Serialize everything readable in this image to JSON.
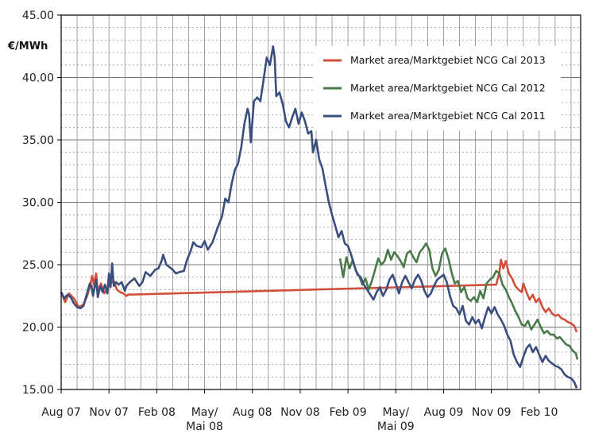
{
  "chart_data": {
    "type": "line",
    "unit_label": "€/MWh",
    "y_ticks": [
      "15.00",
      "20.00",
      "25.00",
      "30.00",
      "35.00",
      "40.00",
      "45.00"
    ],
    "ylim": [
      15,
      45
    ],
    "x_ticks": [
      {
        "label": "Aug 07",
        "label2": "",
        "x": 0
      },
      {
        "label": "Nov 07",
        "label2": "",
        "x": 3
      },
      {
        "label": "Feb 08",
        "label2": "",
        "x": 6
      },
      {
        "label": "May/",
        "label2": "Mai 08",
        "x": 9
      },
      {
        "label": "Aug 08",
        "label2": "",
        "x": 12
      },
      {
        "label": "Nov 08",
        "label2": "",
        "x": 15
      },
      {
        "label": "Feb 09",
        "label2": "",
        "x": 18
      },
      {
        "label": "May/",
        "label2": "Mai 09",
        "x": 21
      },
      {
        "label": "Aug 09",
        "label2": "",
        "x": 24
      },
      {
        "label": "Nov 09",
        "label2": "",
        "x": 27
      },
      {
        "label": "Feb 10",
        "label2": "",
        "x": 30
      }
    ],
    "xlim": [
      0,
      32.6
    ],
    "grid": true,
    "legend_position": "top-right",
    "series": [
      {
        "name": "Market area/Marktgebiet NCG Cal 2013",
        "color": "#d1503b",
        "points": [
          [
            0,
            22.8
          ],
          [
            0.25,
            22.0
          ],
          [
            0.5,
            22.7
          ],
          [
            0.8,
            22.3
          ],
          [
            1.1,
            21.6
          ],
          [
            1.4,
            21.8
          ],
          [
            1.6,
            22.4
          ],
          [
            1.8,
            23.2
          ],
          [
            1.95,
            24.1
          ],
          [
            2.05,
            23.4
          ],
          [
            2.2,
            24.3
          ],
          [
            2.3,
            22.8
          ],
          [
            2.5,
            23.5
          ],
          [
            2.7,
            22.7
          ],
          [
            2.9,
            23.1
          ],
          [
            3.1,
            23.5
          ],
          [
            3.3,
            23.7
          ],
          [
            3.5,
            23.0
          ],
          [
            3.7,
            22.8
          ],
          [
            3.9,
            22.7
          ],
          [
            4.1,
            22.5
          ],
          [
            4.2,
            22.6
          ],
          [
            27.3,
            23.4
          ],
          [
            27.5,
            24.4
          ],
          [
            27.6,
            25.4
          ],
          [
            27.75,
            24.7
          ],
          [
            27.9,
            25.3
          ],
          [
            28.1,
            24.3
          ],
          [
            28.3,
            23.9
          ],
          [
            28.5,
            23.3
          ],
          [
            28.7,
            23.0
          ],
          [
            28.9,
            22.8
          ],
          [
            29.0,
            23.5
          ],
          [
            29.2,
            22.8
          ],
          [
            29.4,
            22.2
          ],
          [
            29.6,
            22.6
          ],
          [
            29.8,
            22.0
          ],
          [
            30.0,
            22.3
          ],
          [
            30.2,
            21.6
          ],
          [
            30.4,
            21.2
          ],
          [
            30.6,
            21.5
          ],
          [
            30.8,
            21.1
          ],
          [
            31.0,
            20.9
          ],
          [
            31.2,
            21.0
          ],
          [
            31.4,
            20.7
          ],
          [
            31.6,
            20.6
          ],
          [
            31.8,
            20.4
          ],
          [
            32.0,
            20.3
          ],
          [
            32.2,
            20.1
          ],
          [
            32.35,
            19.6
          ]
        ]
      },
      {
        "name": "Market area/Marktgebiet NCG Cal 2012",
        "color": "#4a7a4a",
        "points": [
          [
            17.5,
            25.5
          ],
          [
            17.7,
            24.0
          ],
          [
            17.9,
            25.6
          ],
          [
            18.1,
            24.7
          ],
          [
            18.3,
            25.4
          ],
          [
            18.5,
            24.5
          ],
          [
            18.7,
            24.1
          ],
          [
            18.9,
            23.4
          ],
          [
            19.1,
            23.9
          ],
          [
            19.3,
            23.0
          ],
          [
            19.5,
            23.7
          ],
          [
            19.7,
            24.6
          ],
          [
            19.9,
            25.5
          ],
          [
            20.1,
            25.0
          ],
          [
            20.3,
            25.3
          ],
          [
            20.5,
            26.2
          ],
          [
            20.7,
            25.4
          ],
          [
            20.9,
            26.0
          ],
          [
            21.1,
            25.7
          ],
          [
            21.3,
            25.3
          ],
          [
            21.5,
            24.8
          ],
          [
            21.7,
            25.9
          ],
          [
            21.9,
            26.1
          ],
          [
            22.1,
            25.6
          ],
          [
            22.3,
            25.2
          ],
          [
            22.5,
            26.0
          ],
          [
            22.7,
            26.3
          ],
          [
            22.9,
            26.7
          ],
          [
            23.1,
            26.2
          ],
          [
            23.3,
            24.7
          ],
          [
            23.5,
            24.1
          ],
          [
            23.7,
            24.6
          ],
          [
            23.9,
            25.9
          ],
          [
            24.1,
            26.3
          ],
          [
            24.3,
            25.5
          ],
          [
            24.5,
            24.4
          ],
          [
            24.7,
            23.5
          ],
          [
            24.9,
            23.7
          ],
          [
            25.1,
            22.8
          ],
          [
            25.3,
            23.2
          ],
          [
            25.5,
            22.3
          ],
          [
            25.7,
            22.1
          ],
          [
            25.9,
            22.4
          ],
          [
            26.1,
            22.0
          ],
          [
            26.3,
            22.9
          ],
          [
            26.5,
            22.3
          ],
          [
            26.7,
            23.5
          ],
          [
            26.9,
            23.8
          ],
          [
            27.1,
            24.0
          ],
          [
            27.3,
            24.5
          ],
          [
            27.5,
            24.3
          ],
          [
            27.7,
            23.4
          ],
          [
            27.9,
            23.0
          ],
          [
            28.1,
            22.4
          ],
          [
            28.3,
            21.9
          ],
          [
            28.5,
            21.3
          ],
          [
            28.7,
            20.8
          ],
          [
            28.9,
            20.2
          ],
          [
            29.1,
            20.1
          ],
          [
            29.3,
            20.5
          ],
          [
            29.5,
            19.8
          ],
          [
            29.7,
            20.2
          ],
          [
            29.9,
            20.6
          ],
          [
            30.1,
            20.0
          ],
          [
            30.3,
            19.5
          ],
          [
            30.5,
            19.7
          ],
          [
            30.7,
            19.4
          ],
          [
            30.9,
            19.4
          ],
          [
            31.1,
            19.1
          ],
          [
            31.3,
            19.2
          ],
          [
            31.5,
            18.9
          ],
          [
            31.7,
            18.6
          ],
          [
            31.9,
            18.5
          ],
          [
            32.1,
            18.1
          ],
          [
            32.3,
            17.9
          ],
          [
            32.4,
            17.4
          ]
        ]
      },
      {
        "name": "Market area/Marktgebiet NCG Cal 2011",
        "color": "#3a4f7e",
        "points": [
          [
            0,
            22.8
          ],
          [
            0.2,
            22.3
          ],
          [
            0.4,
            22.6
          ],
          [
            0.6,
            22.4
          ],
          [
            0.8,
            21.9
          ],
          [
            1.0,
            21.6
          ],
          [
            1.2,
            21.5
          ],
          [
            1.4,
            21.7
          ],
          [
            1.6,
            22.6
          ],
          [
            1.8,
            23.5
          ],
          [
            1.9,
            23.3
          ],
          [
            2.0,
            22.5
          ],
          [
            2.2,
            23.8
          ],
          [
            2.3,
            22.4
          ],
          [
            2.45,
            23.3
          ],
          [
            2.6,
            22.8
          ],
          [
            2.75,
            23.4
          ],
          [
            2.9,
            22.7
          ],
          [
            3.0,
            24.3
          ],
          [
            3.1,
            23.2
          ],
          [
            3.2,
            25.1
          ],
          [
            3.3,
            23.3
          ],
          [
            3.45,
            23.6
          ],
          [
            3.6,
            23.4
          ],
          [
            3.8,
            23.6
          ],
          [
            4.0,
            22.9
          ],
          [
            4.1,
            23.3
          ],
          [
            4.3,
            23.6
          ],
          [
            4.6,
            23.9
          ],
          [
            4.9,
            23.3
          ],
          [
            5.1,
            23.6
          ],
          [
            5.3,
            24.4
          ],
          [
            5.6,
            24.1
          ],
          [
            5.9,
            24.6
          ],
          [
            6.1,
            24.7
          ],
          [
            6.3,
            25.3
          ],
          [
            6.4,
            25.8
          ],
          [
            6.6,
            25.0
          ],
          [
            6.8,
            24.8
          ],
          [
            7.0,
            24.6
          ],
          [
            7.2,
            24.3
          ],
          [
            7.4,
            24.4
          ],
          [
            7.7,
            24.5
          ],
          [
            7.9,
            25.4
          ],
          [
            8.1,
            26.0
          ],
          [
            8.3,
            26.8
          ],
          [
            8.5,
            26.5
          ],
          [
            8.8,
            26.4
          ],
          [
            9.0,
            26.9
          ],
          [
            9.2,
            26.2
          ],
          [
            9.5,
            26.8
          ],
          [
            9.8,
            27.9
          ],
          [
            10.1,
            28.9
          ],
          [
            10.3,
            30.3
          ],
          [
            10.5,
            30.0
          ],
          [
            10.7,
            31.5
          ],
          [
            10.9,
            32.6
          ],
          [
            11.1,
            33.1
          ],
          [
            11.3,
            34.4
          ],
          [
            11.5,
            36.3
          ],
          [
            11.7,
            37.5
          ],
          [
            11.8,
            37.0
          ],
          [
            11.9,
            34.8
          ],
          [
            12.1,
            38.1
          ],
          [
            12.3,
            38.4
          ],
          [
            12.5,
            38.1
          ],
          [
            12.7,
            39.8
          ],
          [
            12.9,
            41.6
          ],
          [
            13.1,
            41.0
          ],
          [
            13.3,
            42.5
          ],
          [
            13.4,
            41.6
          ],
          [
            13.5,
            38.5
          ],
          [
            13.7,
            38.8
          ],
          [
            13.9,
            37.9
          ],
          [
            14.1,
            36.5
          ],
          [
            14.3,
            36.0
          ],
          [
            14.5,
            36.8
          ],
          [
            14.7,
            37.5
          ],
          [
            14.9,
            36.3
          ],
          [
            15.1,
            37.2
          ],
          [
            15.3,
            36.5
          ],
          [
            15.5,
            35.5
          ],
          [
            15.7,
            35.7
          ],
          [
            15.8,
            34.0
          ],
          [
            16.0,
            35.0
          ],
          [
            16.2,
            33.4
          ],
          [
            16.4,
            32.7
          ],
          [
            16.6,
            31.3
          ],
          [
            16.8,
            30.0
          ],
          [
            17.0,
            29.0
          ],
          [
            17.2,
            28.1
          ],
          [
            17.4,
            27.2
          ],
          [
            17.6,
            27.7
          ],
          [
            17.8,
            26.7
          ],
          [
            18.0,
            26.5
          ],
          [
            18.2,
            25.8
          ],
          [
            18.4,
            24.9
          ],
          [
            18.6,
            24.2
          ],
          [
            18.8,
            24.0
          ],
          [
            19.0,
            23.4
          ],
          [
            19.2,
            23.0
          ],
          [
            19.4,
            22.6
          ],
          [
            19.6,
            22.2
          ],
          [
            19.8,
            22.8
          ],
          [
            20.0,
            23.2
          ],
          [
            20.2,
            22.5
          ],
          [
            20.4,
            23.0
          ],
          [
            20.6,
            23.8
          ],
          [
            20.8,
            24.2
          ],
          [
            21.0,
            23.5
          ],
          [
            21.2,
            22.7
          ],
          [
            21.4,
            23.6
          ],
          [
            21.6,
            24.1
          ],
          [
            21.8,
            23.6
          ],
          [
            22.0,
            23.1
          ],
          [
            22.2,
            23.8
          ],
          [
            22.4,
            24.2
          ],
          [
            22.6,
            23.7
          ],
          [
            22.8,
            22.9
          ],
          [
            23.0,
            22.4
          ],
          [
            23.2,
            22.7
          ],
          [
            23.4,
            23.3
          ],
          [
            23.6,
            23.8
          ],
          [
            23.8,
            24.0
          ],
          [
            24.0,
            24.2
          ],
          [
            24.2,
            23.6
          ],
          [
            24.4,
            22.5
          ],
          [
            24.6,
            21.7
          ],
          [
            24.8,
            21.5
          ],
          [
            25.0,
            21.0
          ],
          [
            25.2,
            21.7
          ],
          [
            25.4,
            20.5
          ],
          [
            25.6,
            20.2
          ],
          [
            25.8,
            20.8
          ],
          [
            26.0,
            20.3
          ],
          [
            26.2,
            20.6
          ],
          [
            26.4,
            19.9
          ],
          [
            26.6,
            20.8
          ],
          [
            26.8,
            21.6
          ],
          [
            27.0,
            21.1
          ],
          [
            27.2,
            21.6
          ],
          [
            27.4,
            21.0
          ],
          [
            27.6,
            20.6
          ],
          [
            27.8,
            20.1
          ],
          [
            28.0,
            19.4
          ],
          [
            28.2,
            18.9
          ],
          [
            28.4,
            17.8
          ],
          [
            28.6,
            17.2
          ],
          [
            28.8,
            16.8
          ],
          [
            29.0,
            17.6
          ],
          [
            29.2,
            18.3
          ],
          [
            29.4,
            18.6
          ],
          [
            29.6,
            18.0
          ],
          [
            29.8,
            18.4
          ],
          [
            30.0,
            17.8
          ],
          [
            30.2,
            17.2
          ],
          [
            30.4,
            17.7
          ],
          [
            30.6,
            17.3
          ],
          [
            30.8,
            17.1
          ],
          [
            31.0,
            16.9
          ],
          [
            31.2,
            16.8
          ],
          [
            31.4,
            16.6
          ],
          [
            31.6,
            16.2
          ],
          [
            31.8,
            16.0
          ],
          [
            32.0,
            15.9
          ],
          [
            32.2,
            15.6
          ],
          [
            32.35,
            15.1
          ]
        ]
      }
    ]
  }
}
